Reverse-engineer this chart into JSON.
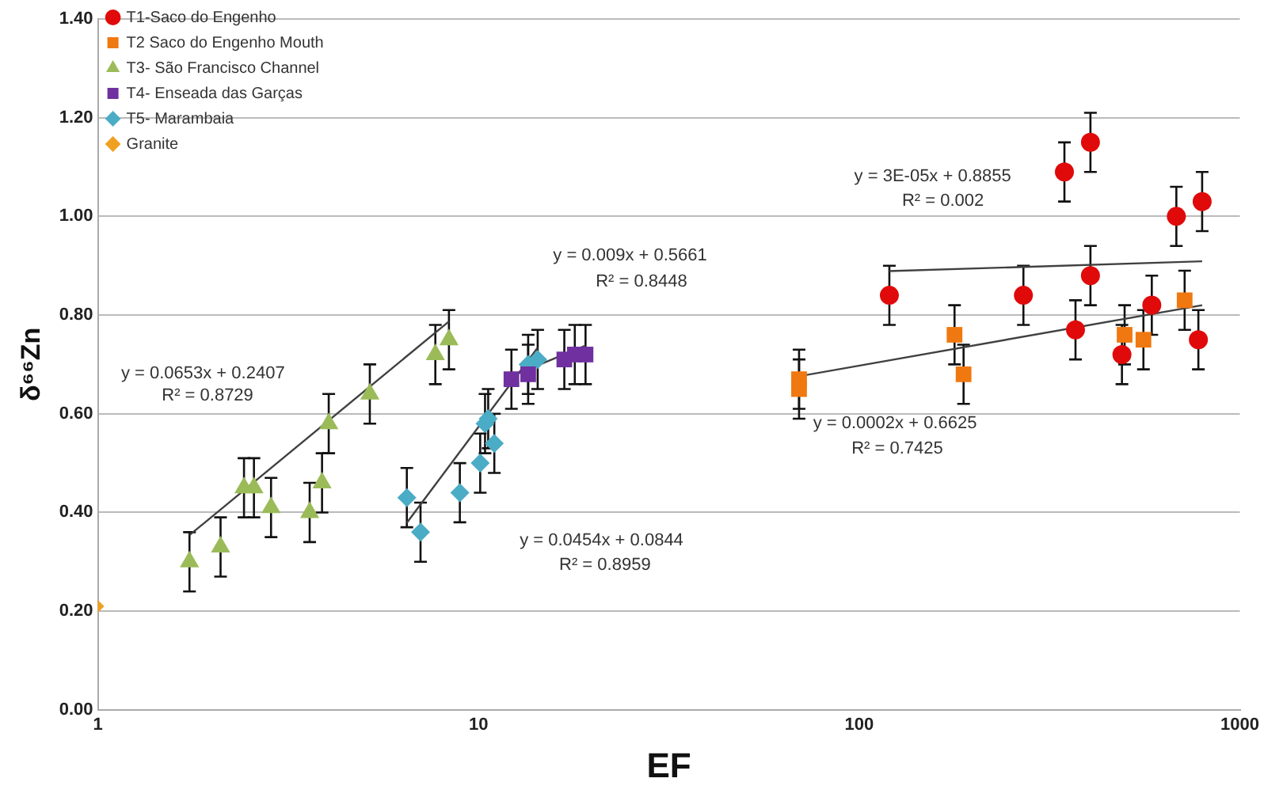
{
  "chart_data": {
    "type": "scatter",
    "xlabel": "EF",
    "ylabel": "δ⁶⁶Zn",
    "log": "x",
    "grid": "y",
    "legend": "top left",
    "xlim": [
      1,
      1000
    ],
    "xticks": [
      1,
      10,
      100,
      1000
    ],
    "ylim": [
      0,
      1.4
    ],
    "yticks": [
      {
        "value": 0,
        "label": "0.00"
      },
      {
        "value": 0.2,
        "label": "0.20"
      },
      {
        "value": 0.4,
        "label": "0.40"
      },
      {
        "value": 0.6,
        "label": "0.60"
      },
      {
        "value": 0.8,
        "label": "0.80"
      },
      {
        "value": 1.0,
        "label": "1.00"
      },
      {
        "value": 1.2,
        "label": "1.20"
      },
      {
        "value": 1.4,
        "label": "1.40"
      }
    ],
    "series": [
      {
        "name": "T1-Saco do Engenho",
        "color": "#e00a0a",
        "marker": "circle",
        "x": [
          120,
          270,
          346,
          405,
          405,
          370,
          490,
          587,
          681,
          796,
          778
        ],
        "values": [
          0.84,
          0.84,
          1.09,
          1.15,
          0.88,
          0.77,
          0.72,
          0.82,
          1.0,
          1.03,
          0.75
        ],
        "errors": [
          0.06,
          0.06,
          0.06,
          0.06,
          0.06,
          0.06,
          0.06,
          0.06,
          0.06,
          0.06,
          0.06
        ]
      },
      {
        "name": "T2 Saco do Engenho Mouth",
        "color": "#f07810",
        "marker": "square",
        "x": [
          69.5,
          69.5,
          178,
          188,
          498,
          558,
          716
        ],
        "values": [
          0.67,
          0.65,
          0.76,
          0.68,
          0.76,
          0.75,
          0.83
        ],
        "errors": [
          0.06,
          0.06,
          0.06,
          0.06,
          0.06,
          0.06,
          0.06
        ]
      },
      {
        "name": "T3- São Francisco Channel",
        "color": "#9bbb59",
        "marker": "triangle",
        "x": [
          1.74,
          2.1,
          2.42,
          2.57,
          2.85,
          3.6,
          3.88,
          4.04,
          5.18,
          7.7,
          8.36
        ],
        "values": [
          0.3,
          0.33,
          0.45,
          0.45,
          0.41,
          0.4,
          0.46,
          0.58,
          0.64,
          0.72,
          0.75
        ],
        "errors": [
          0.06,
          0.06,
          0.06,
          0.06,
          0.06,
          0.06,
          0.06,
          0.06,
          0.06,
          0.06,
          0.06
        ]
      },
      {
        "name": "T4- Enseada das Garças",
        "color": "#7030a0",
        "marker": "square",
        "x": [
          12.2,
          13.5,
          16.8,
          17.9,
          19.1
        ],
        "values": [
          0.67,
          0.68,
          0.71,
          0.72,
          0.72
        ],
        "errors": [
          0.06,
          0.06,
          0.06,
          0.06,
          0.06
        ]
      },
      {
        "name": "T5- Marambaia",
        "color": "#4bacc6",
        "marker": "diamond",
        "x": [
          6.48,
          7.04,
          8.93,
          10.1,
          10.4,
          10.6,
          11.0,
          13.5,
          14.3
        ],
        "values": [
          0.43,
          0.36,
          0.44,
          0.5,
          0.58,
          0.59,
          0.54,
          0.7,
          0.71
        ],
        "errors": [
          0.06,
          0.06,
          0.06,
          0.06,
          0.06,
          0.06,
          0.06,
          0.06,
          0.06
        ]
      },
      {
        "name": "Granite",
        "color": "#f0a020",
        "marker": "diamond",
        "x": [
          1
        ],
        "values": [
          0.21
        ]
      },
      {
        "type": "line",
        "color": "#404040",
        "marker": "none",
        "x": [
          120,
          796
        ],
        "values": [
          0.889,
          0.909
        ]
      },
      {
        "type": "line",
        "color": "#404040",
        "marker": "none",
        "x": [
          69.5,
          796
        ],
        "values": [
          0.676,
          0.82
        ]
      },
      {
        "type": "line",
        "color": "#404040",
        "marker": "none",
        "x": [
          1.74,
          8.36
        ],
        "values": [
          0.354,
          0.787
        ]
      },
      {
        "type": "line",
        "color": "#404040",
        "marker": "none",
        "x": [
          12.2,
          19.1
        ],
        "values": [
          0.676,
          0.738
        ]
      },
      {
        "type": "line",
        "color": "#404040",
        "marker": "none",
        "x": [
          6.48,
          14.3
        ],
        "values": [
          0.379,
          0.734
        ]
      }
    ],
    "annotations": [
      "y = 0.0653x + 0.2407",
      "R² = 0.8729",
      "y = 0.009x + 0.5661",
      "R² = 0.8448",
      "y = 0.0454x + 0.0844",
      "R² = 0.8959",
      "y = 3E-05x + 0.8855",
      "R² = 0.002",
      "y = 0.0002x + 0.6625",
      "R² = 0.7425"
    ]
  }
}
